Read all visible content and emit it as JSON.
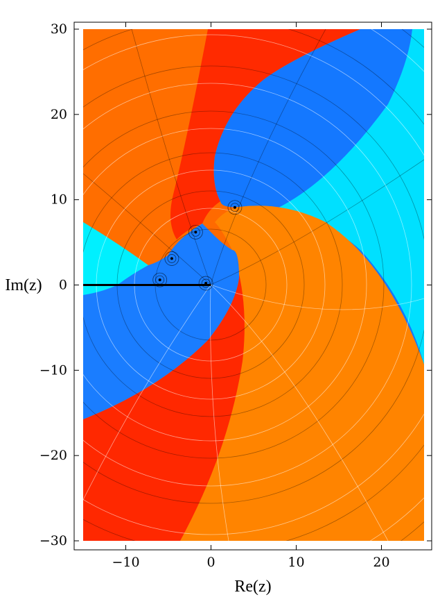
{
  "chart_data": {
    "type": "heatmap",
    "title": "",
    "xlabel": "Re(z)",
    "ylabel": "Im(z)",
    "xlim": [
      -15,
      25
    ],
    "ylim": [
      -30,
      30
    ],
    "x_ticks": [
      -10,
      0,
      10,
      20
    ],
    "y_ticks": [
      -30,
      -20,
      -10,
      0,
      10,
      20,
      30
    ],
    "x_tick_labels": [
      "−10",
      "0",
      "10",
      "20"
    ],
    "y_tick_labels": [
      "−30",
      "−20",
      "−10",
      "0",
      "10",
      "20",
      "30"
    ],
    "colors": {
      "orange": "#ff9a00",
      "red": "#ff1a00",
      "blue": "#0066ff",
      "cyan": "#00ffff",
      "frame": "#000000",
      "branch_cut": "#000000"
    },
    "critical_points": [
      {
        "x": 2.8,
        "y": 9.1
      },
      {
        "x": -1.8,
        "y": 6.2
      },
      {
        "x": -4.6,
        "y": 3.1
      },
      {
        "x": -6.0,
        "y": 0.6
      },
      {
        "x": -0.6,
        "y": 0.2
      }
    ],
    "branch_cut": {
      "from": [
        -15,
        0
      ],
      "to": [
        0,
        0
      ]
    }
  }
}
